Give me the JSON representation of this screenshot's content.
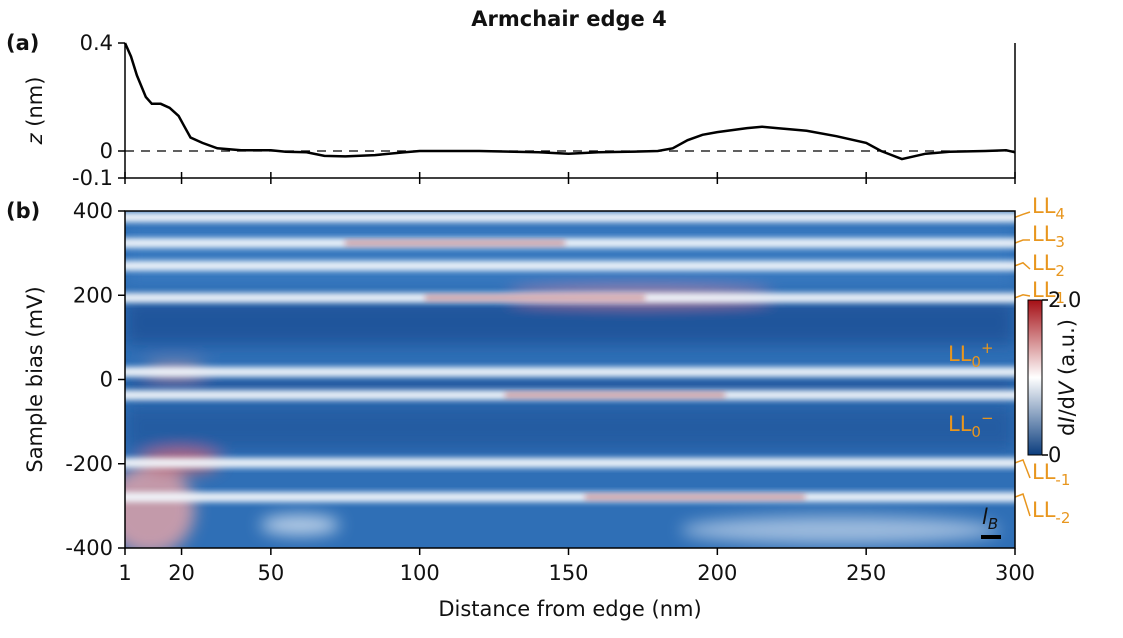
{
  "chart_data": [
    {
      "type": "line",
      "panel_label": "(a)",
      "title": "Armchair edge 4",
      "y_label_parts": [
        "z",
        " (nm)"
      ],
      "x": [
        1,
        3,
        5,
        8,
        10,
        13,
        16,
        19,
        21,
        23,
        27,
        32,
        40,
        50,
        55,
        62,
        68,
        75,
        85,
        95,
        100,
        120,
        140,
        150,
        160,
        170,
        180,
        185,
        190,
        195,
        200,
        210,
        215,
        220,
        230,
        240,
        250,
        255,
        262,
        270,
        278,
        290,
        297,
        300
      ],
      "values": [
        0.4,
        0.35,
        0.28,
        0.2,
        0.175,
        0.175,
        0.16,
        0.13,
        0.09,
        0.05,
        0.03,
        0.01,
        0.003,
        0.003,
        -0.003,
        -0.005,
        -0.018,
        -0.02,
        -0.015,
        -0.005,
        0.0,
        0.0,
        -0.005,
        -0.01,
        -0.005,
        -0.003,
        0.0,
        0.01,
        0.04,
        0.06,
        0.07,
        0.085,
        0.09,
        0.085,
        0.075,
        0.055,
        0.03,
        0.0,
        -0.03,
        -0.01,
        -0.003,
        0.0,
        0.003,
        -0.005
      ],
      "color": "#000000",
      "zero_line": true,
      "xlim": [
        1,
        300
      ],
      "ylim": [
        -0.1,
        0.4
      ],
      "xticks": [
        1,
        20,
        50,
        100,
        150,
        200,
        250,
        300
      ],
      "yticks": [
        0.4,
        0,
        -0.1
      ]
    },
    {
      "type": "heatmap",
      "panel_label": "(b)",
      "y_label": "Sample bias (mV)",
      "x_label": "Distance from edge (nm)",
      "xlim": [
        1,
        300
      ],
      "ylim": [
        -400,
        400
      ],
      "xticks": [
        1,
        20,
        50,
        100,
        150,
        200,
        250,
        300
      ],
      "yticks": [
        400,
        200,
        0,
        -200,
        -400
      ],
      "level_color": "#e8961e",
      "levels": [
        {
          "label": "LL",
          "sub": "4",
          "energy": 385
        },
        {
          "label": "LL",
          "sub": "3",
          "energy": 324
        },
        {
          "label": "LL",
          "sub": "2",
          "energy": 270
        },
        {
          "label": "LL",
          "sub": "1",
          "energy": 194
        },
        {
          "label": "LL",
          "sub": "0",
          "sup": "+",
          "energy": 18
        },
        {
          "label": "LL",
          "sub": "0",
          "sup": "−",
          "energy": -37
        },
        {
          "label": "LL",
          "sub": "-1",
          "energy": -198
        },
        {
          "label": "LL",
          "sub": "-2",
          "energy": -279
        }
      ],
      "colorbar": {
        "label_parts": [
          "d",
          "I",
          "/d",
          "V",
          " (a.u.)"
        ],
        "lim": [
          0,
          2
        ],
        "ticks": [
          {
            "value": 2,
            "label": "2.0"
          },
          0
        ],
        "colors": [
          "#0b3d7e",
          "#ffffff",
          "#a50f15"
        ]
      },
      "scale_bar": {
        "label": "l",
        "sub": "B"
      }
    }
  ]
}
